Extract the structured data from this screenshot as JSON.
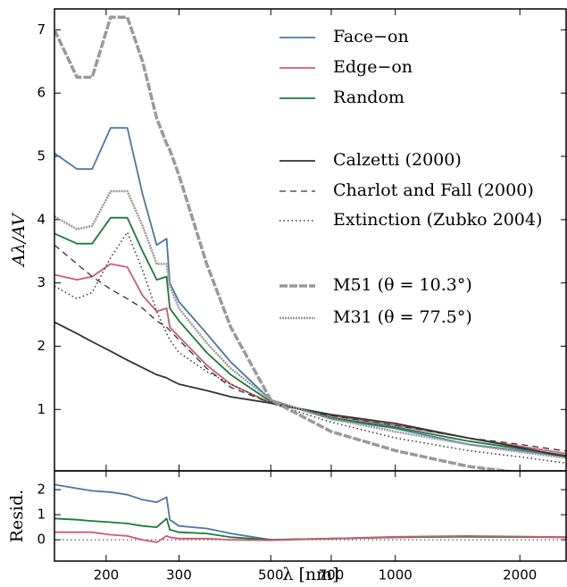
{
  "chart_data": [
    {
      "type": "line",
      "ylabel": "Aλ/AV",
      "log_x": true,
      "legend": "upper right",
      "xlim": [
        150,
        2600
      ],
      "xticks": [
        200,
        300,
        500,
        700,
        1000,
        2000
      ],
      "ylim": [
        0.03,
        7.33
      ],
      "yticks": [
        1,
        2,
        3,
        4,
        5,
        6,
        7
      ],
      "x": [
        150,
        170,
        185,
        205,
        225,
        245,
        265,
        280,
        285,
        300,
        350,
        400,
        500,
        700,
        1000,
        1500,
        2000,
        2600
      ],
      "series": [
        {
          "name": "Face−on",
          "color": "#4a76aa",
          "style": "solid",
          "values": [
            5.05,
            4.8,
            4.8,
            5.45,
            5.45,
            4.4,
            3.6,
            3.7,
            3.0,
            2.7,
            2.2,
            1.75,
            1.15,
            0.85,
            0.7,
            0.45,
            0.35,
            0.25
          ]
        },
        {
          "name": "Edge−on",
          "color": "#cc5b6c",
          "style": "solid",
          "values": [
            3.13,
            3.05,
            3.1,
            3.3,
            3.25,
            2.8,
            2.55,
            2.6,
            2.3,
            2.15,
            1.7,
            1.4,
            1.1,
            0.9,
            0.75,
            0.55,
            0.42,
            0.3
          ]
        },
        {
          "name": "Random",
          "color": "#1a7a3a",
          "style": "solid",
          "values": [
            3.78,
            3.62,
            3.62,
            4.03,
            4.03,
            3.5,
            3.05,
            3.1,
            2.6,
            2.4,
            1.9,
            1.55,
            1.12,
            0.87,
            0.72,
            0.5,
            0.38,
            0.27
          ]
        },
        {
          "name": "Calzetti (2000)",
          "color": "#333333",
          "style": "solid",
          "values": [
            2.38,
            2.2,
            2.07,
            1.92,
            1.78,
            1.66,
            1.55,
            1.5,
            1.47,
            1.4,
            1.3,
            1.2,
            1.1,
            0.92,
            0.78,
            0.55,
            0.4,
            0.25
          ]
        },
        {
          "name": "Charlot and Fall (2000)",
          "color": "#333333",
          "style": "dashed",
          "values": [
            3.6,
            3.3,
            3.1,
            2.9,
            2.75,
            2.6,
            2.4,
            2.3,
            2.25,
            2.1,
            1.65,
            1.35,
            1.1,
            0.9,
            0.75,
            0.55,
            0.45,
            0.34
          ]
        },
        {
          "name": "Extinction (Zubko 2004)",
          "color": "#333333",
          "style": "dotted",
          "values": [
            2.95,
            2.75,
            2.85,
            3.4,
            3.8,
            3.2,
            2.55,
            2.2,
            2.1,
            1.9,
            1.6,
            1.4,
            1.1,
            0.8,
            0.55,
            0.35,
            0.25,
            0.15
          ]
        },
        {
          "name": "M51 (θ = 10.3°)",
          "color": "#999999",
          "style": "thick-dashed",
          "values": [
            7.0,
            6.25,
            6.25,
            7.2,
            7.2,
            6.5,
            5.6,
            5.2,
            5.1,
            4.7,
            3.3,
            2.3,
            1.15,
            0.65,
            0.35,
            0.1,
            0.0,
            -0.1
          ]
        },
        {
          "name": "M31 (θ = 77.5°)",
          "color": "#999999",
          "style": "ticked",
          "values": [
            4.05,
            3.85,
            3.9,
            4.45,
            4.45,
            3.9,
            3.3,
            3.3,
            2.95,
            2.6,
            2.05,
            1.65,
            1.15,
            0.85,
            0.65,
            0.45,
            0.33,
            0.23
          ]
        }
      ]
    },
    {
      "type": "line",
      "ylabel": "Resid.",
      "xlabel": "λ [nm]",
      "log_x": true,
      "xlim": [
        150,
        2600
      ],
      "xticks": [
        200,
        300,
        500,
        700,
        1000,
        2000
      ],
      "ylim": [
        -0.85,
        2.75
      ],
      "yticks": [
        0,
        1,
        2
      ],
      "reference_line": 0,
      "x": [
        150,
        170,
        185,
        205,
        225,
        245,
        265,
        280,
        285,
        300,
        350,
        400,
        500,
        700,
        1000,
        1500,
        2000,
        2600
      ],
      "series": [
        {
          "color": "#4a76aa",
          "values": [
            2.2,
            2.05,
            1.95,
            1.9,
            1.8,
            1.6,
            1.5,
            1.7,
            0.8,
            0.55,
            0.45,
            0.25,
            0.0,
            0.05,
            0.1,
            0.13,
            0.12,
            0.1
          ]
        },
        {
          "color": "#1a7a3a",
          "values": [
            0.85,
            0.8,
            0.75,
            0.7,
            0.65,
            0.55,
            0.5,
            0.85,
            0.4,
            0.3,
            0.25,
            0.1,
            0.0,
            0.05,
            0.1,
            0.12,
            0.11,
            0.1
          ]
        },
        {
          "color": "#cc5b6c",
          "values": [
            0.3,
            0.3,
            0.3,
            0.2,
            0.15,
            0.0,
            -0.1,
            0.15,
            0.1,
            0.05,
            0.05,
            0.0,
            -0.02,
            0.05,
            0.12,
            0.15,
            0.13,
            0.1
          ]
        }
      ]
    }
  ]
}
